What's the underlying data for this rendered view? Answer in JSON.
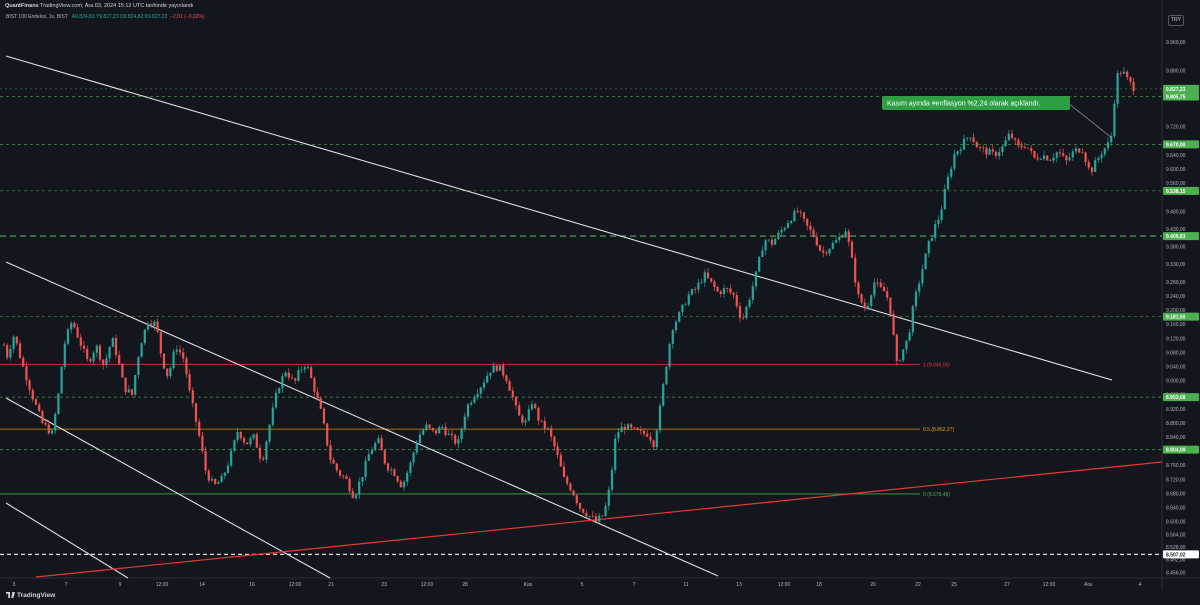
{
  "header": {
    "published_by": "QuantFinans",
    "published_rest": " TradingView.com, Ara 03, 2024 15:12 UTC tarihinde yayınlandı",
    "symbol": "BIST 100 Endeksi, 1s, BIST",
    "ohlc": "A9.824,83  Y9.827,23  D9.824,82  K9.827,23",
    "change": "−2,01 (−0,02%)",
    "currency": "TRY"
  },
  "footer": {
    "brand": "TradingView"
  },
  "colors": {
    "background": "#14161e",
    "up": "#26a69a",
    "down": "#ef5350",
    "support": "#4caf50",
    "channel": "#e0e0e0",
    "trend_red": "#e53935",
    "fib_orange": "#f0a500"
  },
  "chart_data": {
    "type": "candlestick",
    "symbol": "BIST 100 Endeksi",
    "interval": "1s",
    "x_labels": [
      "3",
      "7",
      "9",
      "12:00",
      "14",
      "16",
      "12:00",
      "21",
      "23",
      "12:00",
      "28",
      "Kas",
      "5",
      "7",
      "11",
      "13",
      "12:00",
      "18",
      "20",
      "22",
      "25",
      "27",
      "12:00",
      "Ara",
      "4"
    ],
    "y_ticks": [
      "9.960,00",
      "9.880,00",
      "9.800,00",
      "9.720,00",
      "9.640,00",
      "9.600,00",
      "9.560,00",
      "9.480,00",
      "9.430,00",
      "9.380,00",
      "9.330,00",
      "9.280,00",
      "9.240,00",
      "9.200,00",
      "9.160,00",
      "9.120,00",
      "9.080,00",
      "9.040,00",
      "9.000,00",
      "8.960,00",
      "8.920,00",
      "8.880,00",
      "8.840,00",
      "8.800,00",
      "8.760,00",
      "8.720,00",
      "8.680,00",
      "8.640,00",
      "8.600,00",
      "8.564,00",
      "8.528,00",
      "8.492,00",
      "8.456,00"
    ],
    "ylim": [
      8440,
      10000
    ],
    "price_labels": [
      {
        "text": "9.827,23",
        "value": 9827.23,
        "type": "price"
      },
      {
        "text": "9.805,75",
        "value": 9805.75,
        "type": "support"
      },
      {
        "text": "9.670,00",
        "value": 9670.0,
        "type": "support"
      },
      {
        "text": "9.538,15",
        "value": 9538.15,
        "type": "support"
      },
      {
        "text": "9.409,83",
        "value": 9409.83,
        "type": "support"
      },
      {
        "text": "9.181,50",
        "value": 9181.5,
        "type": "support"
      },
      {
        "text": "8.953,08",
        "value": 8953.08,
        "type": "support"
      },
      {
        "text": "8.804,09",
        "value": 8804.09,
        "type": "support"
      },
      {
        "text": "8.507,02",
        "value": 8507.02,
        "type": "white"
      }
    ],
    "fib_levels": [
      {
        "label": "1 (9.046,06)",
        "value": 9046.06,
        "color": "#e53935"
      },
      {
        "label": "0.5 (8.862,27)",
        "value": 8862.27,
        "color": "#f0a500"
      },
      {
        "label": "0 (8.678,48)",
        "value": 8678.48,
        "color": "#4caf50"
      }
    ],
    "annotation": "Kasım ayında #enflasyon %2,24 olarak açıklandı.",
    "path": [
      [
        0,
        9180
      ],
      [
        6,
        9060
      ],
      [
        14,
        9130
      ],
      [
        22,
        9050
      ],
      [
        32,
        8960
      ],
      [
        42,
        8880
      ],
      [
        52,
        8850
      ],
      [
        58,
        8950
      ],
      [
        64,
        9100
      ],
      [
        72,
        9170
      ],
      [
        80,
        9110
      ],
      [
        88,
        9050
      ],
      [
        96,
        9100
      ],
      [
        104,
        9040
      ],
      [
        112,
        9120
      ],
      [
        118,
        9060
      ],
      [
        124,
        8980
      ],
      [
        132,
        8960
      ],
      [
        140,
        9100
      ],
      [
        148,
        9170
      ],
      [
        156,
        9160
      ],
      [
        162,
        9060
      ],
      [
        168,
        9010
      ],
      [
        176,
        9100
      ],
      [
        184,
        9060
      ],
      [
        190,
        8960
      ],
      [
        198,
        8860
      ],
      [
        206,
        8740
      ],
      [
        214,
        8700
      ],
      [
        222,
        8720
      ],
      [
        230,
        8780
      ],
      [
        238,
        8860
      ],
      [
        246,
        8820
      ],
      [
        254,
        8840
      ],
      [
        262,
        8770
      ],
      [
        270,
        8880
      ],
      [
        278,
        8980
      ],
      [
        286,
        9030
      ],
      [
        294,
        8990
      ],
      [
        300,
        9030
      ],
      [
        306,
        9050
      ],
      [
        314,
        8980
      ],
      [
        322,
        8900
      ],
      [
        330,
        8780
      ],
      [
        338,
        8740
      ],
      [
        346,
        8720
      ],
      [
        354,
        8670
      ],
      [
        362,
        8730
      ],
      [
        370,
        8800
      ],
      [
        378,
        8830
      ],
      [
        386,
        8760
      ],
      [
        394,
        8740
      ],
      [
        402,
        8700
      ],
      [
        410,
        8760
      ],
      [
        418,
        8840
      ],
      [
        426,
        8870
      ],
      [
        434,
        8850
      ],
      [
        442,
        8870
      ],
      [
        450,
        8840
      ],
      [
        458,
        8820
      ],
      [
        466,
        8920
      ],
      [
        474,
        8960
      ],
      [
        482,
        8990
      ],
      [
        490,
        9030
      ],
      [
        498,
        9040
      ],
      [
        506,
        9010
      ],
      [
        512,
        8960
      ],
      [
        518,
        8900
      ],
      [
        526,
        8880
      ],
      [
        532,
        8940
      ],
      [
        540,
        8880
      ],
      [
        548,
        8860
      ],
      [
        556,
        8800
      ],
      [
        564,
        8720
      ],
      [
        572,
        8690
      ],
      [
        580,
        8640
      ],
      [
        588,
        8620
      ],
      [
        596,
        8600
      ],
      [
        604,
        8620
      ],
      [
        610,
        8700
      ],
      [
        616,
        8850
      ],
      [
        624,
        8870
      ],
      [
        632,
        8860
      ],
      [
        640,
        8850
      ],
      [
        648,
        8850
      ],
      [
        654,
        8820
      ],
      [
        660,
        8920
      ],
      [
        666,
        9040
      ],
      [
        672,
        9150
      ],
      [
        680,
        9190
      ],
      [
        688,
        9240
      ],
      [
        696,
        9260
      ],
      [
        704,
        9300
      ],
      [
        710,
        9280
      ],
      [
        718,
        9250
      ],
      [
        726,
        9260
      ],
      [
        734,
        9240
      ],
      [
        742,
        9170
      ],
      [
        748,
        9220
      ],
      [
        756,
        9300
      ],
      [
        764,
        9400
      ],
      [
        772,
        9390
      ],
      [
        780,
        9420
      ],
      [
        790,
        9460
      ],
      [
        798,
        9480
      ],
      [
        806,
        9440
      ],
      [
        814,
        9410
      ],
      [
        822,
        9360
      ],
      [
        830,
        9380
      ],
      [
        838,
        9400
      ],
      [
        846,
        9430
      ],
      [
        852,
        9340
      ],
      [
        858,
        9240
      ],
      [
        866,
        9200
      ],
      [
        874,
        9280
      ],
      [
        880,
        9260
      ],
      [
        886,
        9250
      ],
      [
        892,
        9180
      ],
      [
        896,
        9040
      ],
      [
        902,
        9080
      ],
      [
        908,
        9120
      ],
      [
        914,
        9220
      ],
      [
        920,
        9290
      ],
      [
        928,
        9380
      ],
      [
        934,
        9430
      ],
      [
        940,
        9470
      ],
      [
        946,
        9550
      ],
      [
        954,
        9640
      ],
      [
        962,
        9670
      ],
      [
        970,
        9700
      ],
      [
        978,
        9660
      ],
      [
        986,
        9650
      ],
      [
        994,
        9640
      ],
      [
        1002,
        9660
      ],
      [
        1010,
        9700
      ],
      [
        1018,
        9660
      ],
      [
        1026,
        9670
      ],
      [
        1034,
        9630
      ],
      [
        1042,
        9640
      ],
      [
        1050,
        9630
      ],
      [
        1058,
        9650
      ],
      [
        1066,
        9620
      ],
      [
        1074,
        9650
      ],
      [
        1082,
        9660
      ],
      [
        1090,
        9590
      ],
      [
        1096,
        9620
      ],
      [
        1102,
        9650
      ],
      [
        1108,
        9670
      ],
      [
        1112,
        9700
      ],
      [
        1116,
        9860
      ],
      [
        1122,
        9880
      ],
      [
        1128,
        9850
      ],
      [
        1134,
        9830
      ]
    ]
  }
}
